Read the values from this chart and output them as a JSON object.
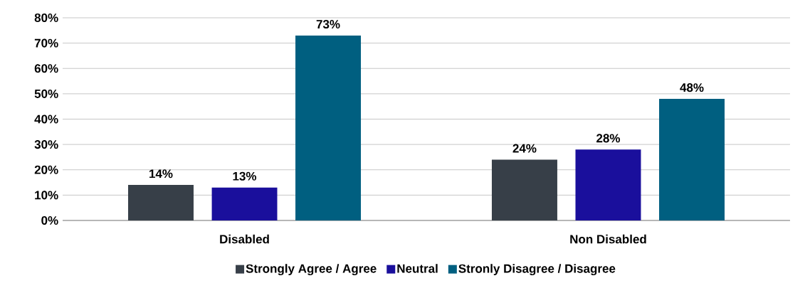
{
  "chart_data": {
    "type": "bar",
    "categories": [
      "Disabled",
      "Non Disabled"
    ],
    "series": [
      {
        "name": "Strongly Agree / Agree",
        "color": "#373f48",
        "values": [
          14,
          24
        ],
        "value_labels": [
          "14%",
          "24%"
        ]
      },
      {
        "name": "Neutral",
        "color": "#1a0f9c",
        "values": [
          13,
          28
        ],
        "value_labels": [
          "13%",
          "28%"
        ]
      },
      {
        "name": "Stronly Disagree / Disagree",
        "color": "#005f80",
        "values": [
          73,
          48
        ],
        "value_labels": [
          "73%",
          "48%"
        ]
      }
    ],
    "ylim": [
      0,
      80
    ],
    "yticks": [
      {
        "value": 0,
        "label": "0%"
      },
      {
        "value": 10,
        "label": "10%"
      },
      {
        "value": 20,
        "label": "20%"
      },
      {
        "value": 30,
        "label": "30%"
      },
      {
        "value": 40,
        "label": "40%"
      },
      {
        "value": 50,
        "label": "50%"
      },
      {
        "value": 60,
        "label": "60%"
      },
      {
        "value": 70,
        "label": "70%"
      },
      {
        "value": 80,
        "label": "80%"
      }
    ],
    "grid": "y",
    "legend": "bottom"
  }
}
